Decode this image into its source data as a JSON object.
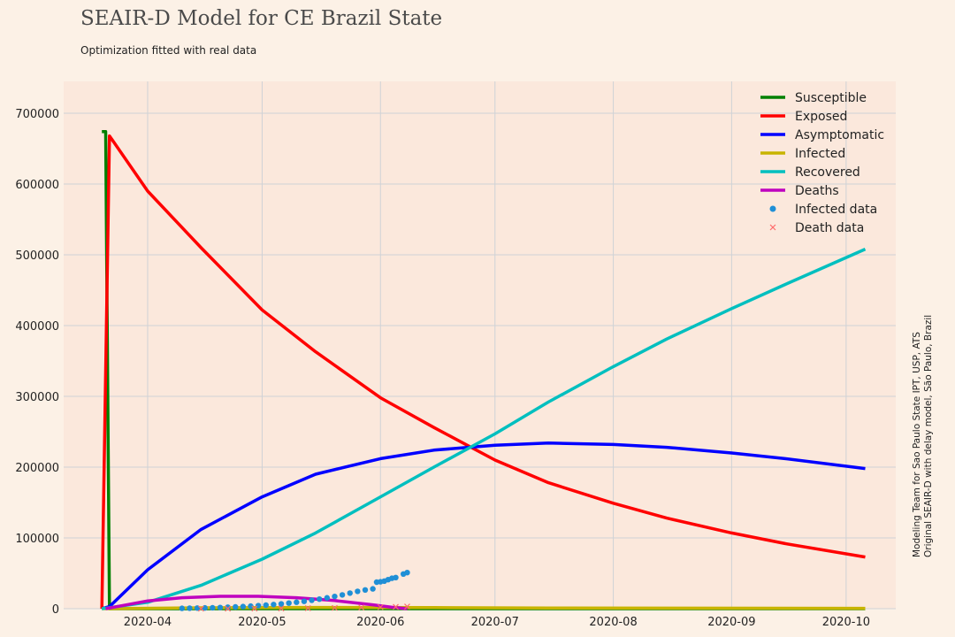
{
  "page": {
    "title": "SEAIR-D Model for CE Brazil State",
    "subtitle": "Optimization fitted with real data",
    "side_note_line1": "Modeling Team for Sao Paulo State IPT, USP, ATS",
    "side_note_line2": "Original SEAIR-D with delay model, São Paulo, Brazil"
  },
  "colors": {
    "background": "#fcf1e6",
    "plot_background": "#fbe8dc",
    "grid": "#cfd2d6",
    "susceptible": "#008000",
    "exposed": "#ff0000",
    "asymptomatic": "#0000ff",
    "infected": "#c8b400",
    "recovered": "#00bfbf",
    "deaths": "#bf00bf",
    "infected_data": "#1f8fd6",
    "death_data": "#ff6b6b"
  },
  "chart_data": {
    "type": "line",
    "x_type": "date",
    "xlim": [
      "2020-03-10",
      "2020-10-14"
    ],
    "ylim": [
      0,
      745000
    ],
    "grid": true,
    "legend_position": "top-right",
    "xticks": [
      "2020-04-01",
      "2020-05-01",
      "2020-06-01",
      "2020-07-01",
      "2020-08-01",
      "2020-09-01",
      "2020-10-01"
    ],
    "xtick_labels": [
      "2020-04",
      "2020-05",
      "2020-06",
      "2020-07",
      "2020-08",
      "2020-09",
      "2020-10"
    ],
    "yticks": [
      0,
      100000,
      200000,
      300000,
      400000,
      500000,
      600000,
      700000
    ],
    "ytick_labels": [
      "0",
      "100000",
      "200000",
      "300000",
      "400000",
      "500000",
      "600000",
      "700000"
    ],
    "series": [
      {
        "name": "Susceptible",
        "style": "line",
        "color_key": "susceptible",
        "points": [
          [
            "2020-03-20",
            674000
          ],
          [
            "2020-03-21",
            674000
          ],
          [
            "2020-03-22",
            0
          ],
          [
            "2020-03-23",
            0
          ],
          [
            "2020-10-06",
            0
          ]
        ]
      },
      {
        "name": "Exposed",
        "style": "line",
        "color_key": "exposed",
        "points": [
          [
            "2020-03-20",
            0
          ],
          [
            "2020-03-22",
            668000
          ],
          [
            "2020-04-01",
            590000
          ],
          [
            "2020-04-15",
            510000
          ],
          [
            "2020-05-01",
            422000
          ],
          [
            "2020-05-15",
            363000
          ],
          [
            "2020-06-01",
            298000
          ],
          [
            "2020-06-15",
            256000
          ],
          [
            "2020-07-01",
            210000
          ],
          [
            "2020-07-15",
            178000
          ],
          [
            "2020-08-01",
            149000
          ],
          [
            "2020-08-15",
            128000
          ],
          [
            "2020-09-01",
            107000
          ],
          [
            "2020-09-15",
            92000
          ],
          [
            "2020-10-06",
            73000
          ]
        ]
      },
      {
        "name": "Asymptomatic",
        "style": "line",
        "color_key": "asymptomatic",
        "points": [
          [
            "2020-03-20",
            0
          ],
          [
            "2020-03-22",
            3000
          ],
          [
            "2020-04-01",
            55000
          ],
          [
            "2020-04-15",
            112000
          ],
          [
            "2020-05-01",
            158000
          ],
          [
            "2020-05-15",
            190000
          ],
          [
            "2020-06-01",
            212000
          ],
          [
            "2020-06-15",
            224000
          ],
          [
            "2020-07-01",
            231000
          ],
          [
            "2020-07-15",
            234000
          ],
          [
            "2020-08-01",
            232000
          ],
          [
            "2020-08-15",
            228000
          ],
          [
            "2020-09-01",
            220000
          ],
          [
            "2020-09-15",
            212000
          ],
          [
            "2020-10-06",
            198000
          ]
        ]
      },
      {
        "name": "Infected",
        "style": "line",
        "color_key": "infected",
        "points": [
          [
            "2020-03-20",
            0
          ],
          [
            "2020-04-15",
            1200
          ],
          [
            "2020-05-15",
            1800
          ],
          [
            "2020-06-15",
            1500
          ],
          [
            "2020-07-15",
            1000
          ],
          [
            "2020-10-06",
            500
          ]
        ]
      },
      {
        "name": "Recovered",
        "style": "line",
        "color_key": "recovered",
        "points": [
          [
            "2020-03-20",
            0
          ],
          [
            "2020-04-01",
            9000
          ],
          [
            "2020-04-15",
            33000
          ],
          [
            "2020-05-01",
            70000
          ],
          [
            "2020-05-15",
            107000
          ],
          [
            "2020-06-01",
            158000
          ],
          [
            "2020-06-15",
            200000
          ],
          [
            "2020-07-01",
            247000
          ],
          [
            "2020-07-15",
            292000
          ],
          [
            "2020-08-01",
            342000
          ],
          [
            "2020-08-15",
            381000
          ],
          [
            "2020-09-01",
            424000
          ],
          [
            "2020-09-15",
            458000
          ],
          [
            "2020-10-06",
            508000
          ]
        ]
      },
      {
        "name": "Deaths",
        "style": "line",
        "color_key": "deaths",
        "points": [
          [
            "2020-03-21",
            0
          ],
          [
            "2020-04-01",
            11000
          ],
          [
            "2020-04-10",
            15500
          ],
          [
            "2020-04-20",
            17500
          ],
          [
            "2020-04-30",
            17500
          ],
          [
            "2020-05-10",
            15500
          ],
          [
            "2020-05-20",
            11500
          ],
          [
            "2020-05-30",
            5500
          ],
          [
            "2020-06-04",
            2000
          ],
          [
            "2020-06-08",
            0
          ]
        ]
      },
      {
        "name": "Infected data",
        "style": "dots",
        "color_key": "infected_data",
        "points": [
          [
            "2020-04-10",
            500
          ],
          [
            "2020-04-12",
            700
          ],
          [
            "2020-04-14",
            900
          ],
          [
            "2020-04-16",
            1100
          ],
          [
            "2020-04-18",
            1300
          ],
          [
            "2020-04-20",
            1700
          ],
          [
            "2020-04-22",
            2100
          ],
          [
            "2020-04-24",
            2500
          ],
          [
            "2020-04-26",
            3000
          ],
          [
            "2020-04-28",
            3600
          ],
          [
            "2020-04-30",
            4300
          ],
          [
            "2020-05-02",
            5000
          ],
          [
            "2020-05-04",
            5900
          ],
          [
            "2020-05-06",
            6800
          ],
          [
            "2020-05-08",
            7900
          ],
          [
            "2020-05-10",
            9100
          ],
          [
            "2020-05-12",
            10400
          ],
          [
            "2020-05-14",
            11900
          ],
          [
            "2020-05-16",
            13500
          ],
          [
            "2020-05-18",
            15300
          ],
          [
            "2020-05-20",
            17300
          ],
          [
            "2020-05-22",
            19500
          ],
          [
            "2020-05-24",
            22000
          ],
          [
            "2020-05-26",
            24500
          ],
          [
            "2020-05-28",
            26500
          ],
          [
            "2020-05-30",
            28000
          ],
          [
            "2020-05-31",
            37500
          ],
          [
            "2020-06-01",
            38000
          ],
          [
            "2020-06-02",
            39000
          ],
          [
            "2020-06-03",
            41000
          ],
          [
            "2020-06-04",
            43000
          ],
          [
            "2020-06-05",
            44000
          ],
          [
            "2020-06-07",
            49000
          ],
          [
            "2020-06-08",
            51000
          ]
        ]
      },
      {
        "name": "Death data",
        "style": "x",
        "color_key": "death_data",
        "points": [
          [
            "2020-04-15",
            50
          ],
          [
            "2020-04-22",
            100
          ],
          [
            "2020-04-29",
            200
          ],
          [
            "2020-05-06",
            400
          ],
          [
            "2020-05-13",
            700
          ],
          [
            "2020-05-20",
            1100
          ],
          [
            "2020-05-27",
            1600
          ],
          [
            "2020-06-01",
            2200
          ],
          [
            "2020-06-05",
            2600
          ],
          [
            "2020-06-08",
            3000
          ]
        ]
      }
    ]
  }
}
